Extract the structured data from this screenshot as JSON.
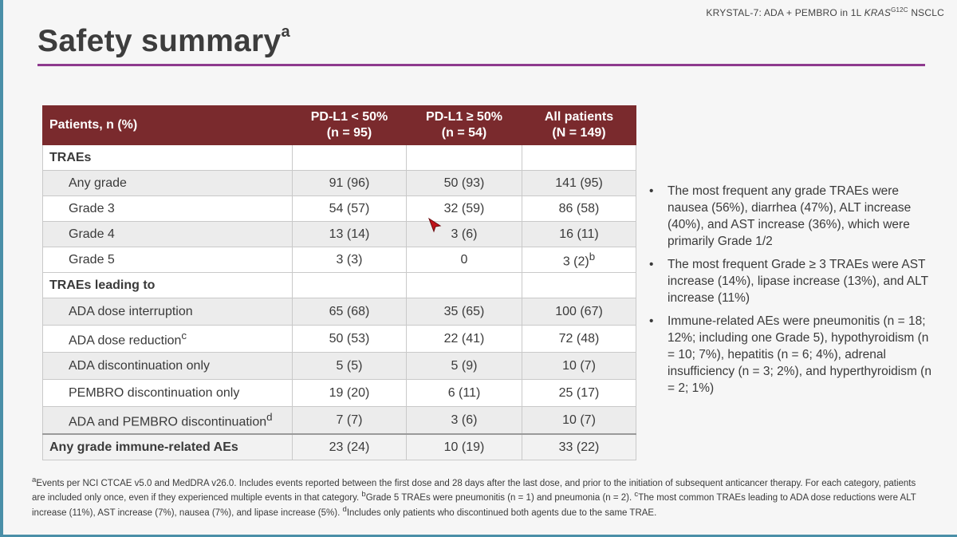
{
  "header": {
    "study_prefix": "KRYSTAL-7: ADA + PEMBRO in 1L ",
    "gene": "KRAS",
    "mutation_sup": "G12C",
    "suffix": " NSCLC"
  },
  "title": {
    "text": "Safety summary",
    "sup": "a"
  },
  "table": {
    "headers": [
      {
        "line1": "Patients, n (%)",
        "line2": ""
      },
      {
        "line1": "PD-L1 < 50%",
        "line2": "(n = 95)"
      },
      {
        "line1": "PD-L1 ≥ 50%",
        "line2": "(n = 54)"
      },
      {
        "line1": "All patients",
        "line2": "(N = 149)"
      }
    ],
    "rows": [
      {
        "label": "TRAEs",
        "sup": "",
        "values": [
          "",
          "",
          ""
        ]
      },
      {
        "label": "Any grade",
        "sup": "",
        "values": [
          "91 (96)",
          "50 (93)",
          "141 (95)"
        ]
      },
      {
        "label": "Grade 3",
        "sup": "",
        "values": [
          "54 (57)",
          "32 (59)",
          "86 (58)"
        ]
      },
      {
        "label": "Grade 4",
        "sup": "",
        "values": [
          "13 (14)",
          "3 (6)",
          "16 (11)"
        ]
      },
      {
        "label": "Grade 5",
        "sup": "",
        "values": [
          "3 (3)",
          "0",
          "3 (2)"
        ],
        "value_sup": [
          "",
          "",
          "b"
        ]
      },
      {
        "label": "TRAEs leading to",
        "sup": "",
        "values": [
          "",
          "",
          ""
        ]
      },
      {
        "label": "ADA dose interruption",
        "sup": "",
        "values": [
          "65 (68)",
          "35 (65)",
          "100 (67)"
        ]
      },
      {
        "label": "ADA dose reduction",
        "sup": "c",
        "values": [
          "50 (53)",
          "22 (41)",
          "72 (48)"
        ]
      },
      {
        "label": "ADA discontinuation only",
        "sup": "",
        "values": [
          "5 (5)",
          "5 (9)",
          "10 (7)"
        ]
      },
      {
        "label": "PEMBRO discontinuation only",
        "sup": "",
        "values": [
          "19 (20)",
          "6 (11)",
          "25 (17)"
        ]
      },
      {
        "label": "ADA and PEMBRO discontinuation",
        "sup": "d",
        "values": [
          "7 (7)",
          "3 (6)",
          "10 (7)"
        ]
      },
      {
        "label": "Any grade immune-related AEs",
        "sup": "",
        "values": [
          "23 (24)",
          "10 (19)",
          "33 (22)"
        ]
      }
    ]
  },
  "bullets": [
    "The most frequent any grade TRAEs were nausea (56%), diarrhea (47%), ALT increase (40%), and AST increase (36%), which were primarily Grade 1/2",
    "The most frequent Grade ≥ 3 TRAEs were AST increase (14%), lipase increase (13%), and ALT increase (11%)",
    "Immune-related AEs were pneumonitis (n = 18; 12%; including one Grade 5), hypothyroidism (n = 10; 7%), hepatitis (n = 6; 4%), adrenal insufficiency (n = 3; 2%), and hyperthyroidism (n = 2; 1%)"
  ],
  "bullet_glyph": "•",
  "footnotes": [
    {
      "sup": "a",
      "text": "Events per NCI CTCAE v5.0 and MedDRA v26.0. Includes events reported between the first dose and 28 days after the last dose, and prior to the initiation of subsequent anticancer therapy. For each category, patients are included only once, even if they experienced multiple events in that category. "
    },
    {
      "sup": "b",
      "text": "Grade 5 TRAEs were pneumonitis (n = 1) and pneumonia (n = 2). "
    },
    {
      "sup": "c",
      "text": "The most common TRAEs leading to ADA dose reductions were ALT increase (11%), AST increase (7%), nausea (7%), and lipase increase (5%). "
    },
    {
      "sup": "d",
      "text": "Includes only patients who discontinued both agents due to the same TRAE."
    }
  ],
  "colors": {
    "header_bg": "#7a2a2d",
    "title_rule": "#8e3a8e",
    "cursor": "#c0141b"
  },
  "icons": {
    "cursor": "mouse-pointer-icon"
  }
}
